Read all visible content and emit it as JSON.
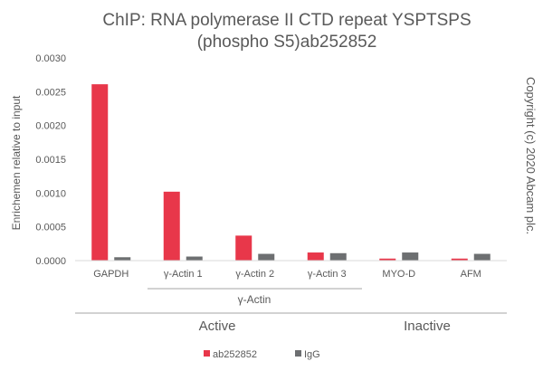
{
  "chart_data": {
    "type": "bar",
    "title_line1": "ChIP: RNA polymerase II CTD repeat YSPTSPS",
    "title_line2": "(phospho S5)ab252852",
    "ylabel": "Enrichemen relative to input",
    "ylim": [
      0,
      0.003
    ],
    "yticks": [
      "0.0000",
      "0.0005",
      "0.0010",
      "0.0015",
      "0.0020",
      "0.0025",
      "0.0030"
    ],
    "categories": [
      "GAPDH",
      "γ-Actin 1",
      "γ-Actin 2",
      "γ-Actin 3",
      "MYO-D",
      "AFM"
    ],
    "series": [
      {
        "name": "ab252852",
        "color": "#e8374a",
        "values": [
          0.00261,
          0.00102,
          0.00037,
          0.00012,
          3e-05,
          3e-05
        ]
      },
      {
        "name": "IgG",
        "color": "#6d6f71",
        "values": [
          5e-05,
          6e-05,
          0.0001,
          0.00011,
          0.00012,
          0.0001
        ]
      }
    ],
    "subgroup_label": "γ-Actin",
    "sections": [
      {
        "label": "Active"
      },
      {
        "label": "Inactive"
      }
    ],
    "copyright": "Copyright (c) 2020 Abcam plc.",
    "grid": false,
    "legend_position": "bottom"
  }
}
